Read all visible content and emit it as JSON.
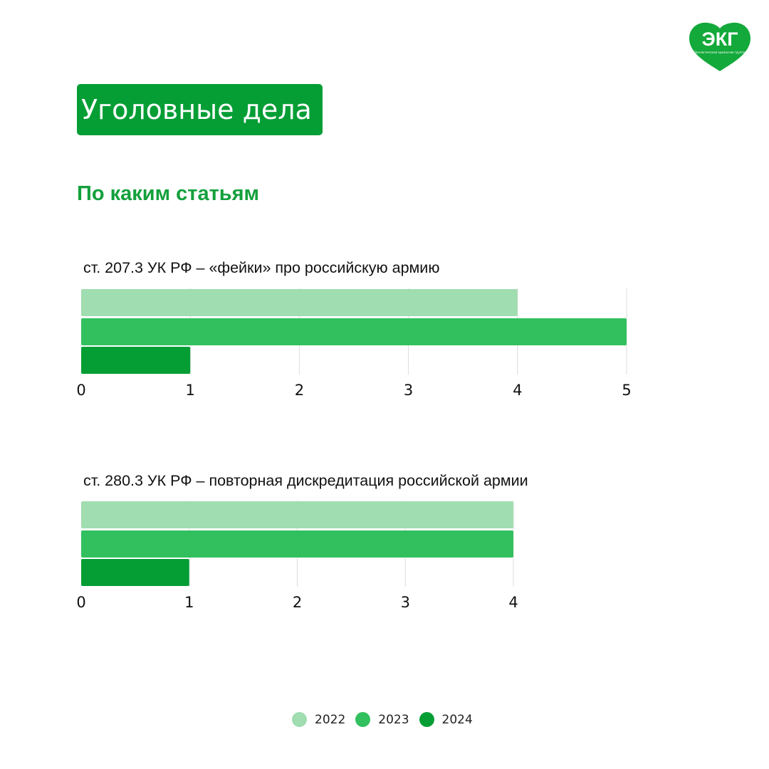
{
  "header": {
    "title": "Уголовные дела",
    "subtitle": "По каким статьям"
  },
  "logo": {
    "text": "ЭКГ",
    "tagline": "Экологическая кризисная группа",
    "icon": "heart-logo-icon"
  },
  "colors": {
    "2022": "#a0ddb0",
    "2023": "#32c05e",
    "2024": "#059e35",
    "title_bg": "#059e35",
    "subtitle": "#14a03c"
  },
  "legend": [
    {
      "label": "2022",
      "color": "#a0ddb0"
    },
    {
      "label": "2023",
      "color": "#32c05e"
    },
    {
      "label": "2024",
      "color": "#059e35"
    }
  ],
  "chart_data": [
    {
      "type": "bar",
      "orientation": "horizontal",
      "title": "ст. 207.3 УК РФ – «фейки» про российскую армию",
      "series": [
        {
          "name": "2022",
          "values": [
            4
          ]
        },
        {
          "name": "2023",
          "values": [
            5
          ]
        },
        {
          "name": "2024",
          "values": [
            1
          ]
        }
      ],
      "xlim": [
        0,
        5
      ],
      "ticks": [
        "0",
        "1",
        "2",
        "3",
        "4",
        "5"
      ],
      "grid": true
    },
    {
      "type": "bar",
      "orientation": "horizontal",
      "title": "ст. 280.3 УК РФ – повторная дискредитация российской армии",
      "series": [
        {
          "name": "2022",
          "values": [
            4
          ]
        },
        {
          "name": "2023",
          "values": [
            4
          ]
        },
        {
          "name": "2024",
          "values": [
            1
          ]
        }
      ],
      "xlim": [
        0,
        4
      ],
      "ticks": [
        "0",
        "1",
        "2",
        "3",
        "4"
      ],
      "grid": true
    }
  ]
}
